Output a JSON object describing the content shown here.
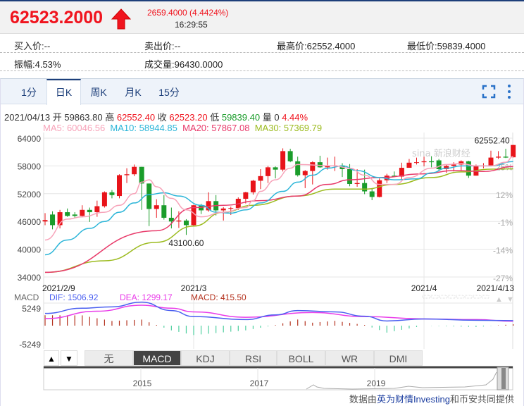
{
  "quote": {
    "price": "62523.2000",
    "change": "2659.4000 (4.4424%)",
    "time": "16:29:55",
    "direction": "up",
    "color_up": "#f0141e",
    "color_down": "#1a9c2a"
  },
  "info": {
    "bid": "买入价:--",
    "ask": "卖出价:--",
    "high": "最高价:62552.4000",
    "low": "最低价:59839.4000",
    "amplitude": "振幅:4.53%",
    "volume": "成交量:96430.0000"
  },
  "tabs": [
    {
      "label": "1分"
    },
    {
      "label": "日K",
      "active": true
    },
    {
      "label": "周K"
    },
    {
      "label": "月K"
    },
    {
      "label": "15分"
    }
  ],
  "toolbar_icons": [
    "fullscreen-icon",
    "more-vertical-icon"
  ],
  "ohlc_line": {
    "date": "2021/04/13",
    "open_label": "开",
    "open": "59863.80",
    "high_label": "高",
    "high": "62552.40",
    "close_label": "收",
    "close": "62523.20",
    "low_label": "低",
    "low": "59839.40",
    "vol_label": "量",
    "vol": "0",
    "pct": "4.44%"
  },
  "ma_line": {
    "ma5": "MA5: 60046.56",
    "ma10": "MA10: 58944.85",
    "ma20": "MA20: 57867.08",
    "ma30": "MA30: 57369.79"
  },
  "colors": {
    "ma5": "#f7a3b9",
    "ma10": "#2bb5d8",
    "ma20": "#e83a6a",
    "ma30": "#9cbb1f",
    "dif": "#4a5ff0",
    "dea": "#e93ce9",
    "macd": "#b4321e",
    "hist_up": "#b4321e",
    "hist_down": "#4fcf9f"
  },
  "chart_data": {
    "type": "candlestick",
    "y_ticks": [
      64000,
      58000,
      52000,
      46000,
      40000,
      34000
    ],
    "ylim": [
      34000,
      64000
    ],
    "pct_ticks": [
      "25%",
      "12%",
      "-1%",
      "-14%",
      "-27%"
    ],
    "x_labels": [
      {
        "date": "2021-02-09",
        "label": "2021/2/9"
      },
      {
        "date": "2021-03-01",
        "label": "2021/3"
      },
      {
        "date": "2021-04-01",
        "label": "2021/4"
      },
      {
        "date": "2021-04-13",
        "label": "2021/4/13"
      }
    ],
    "max_label": "62552.40",
    "min_label": "43100.60",
    "watermark": "sina 新浪财经",
    "candles": [
      [
        "2021-02-09",
        46000,
        47800,
        45200,
        46300
      ],
      [
        "2021-02-10",
        47500,
        48200,
        44300,
        45200
      ],
      [
        "2021-02-11",
        45200,
        48500,
        44500,
        48000
      ],
      [
        "2021-02-12",
        48000,
        48800,
        47000,
        47200
      ],
      [
        "2021-02-13",
        47500,
        48000,
        46800,
        47200
      ],
      [
        "2021-02-14",
        47200,
        49500,
        46900,
        48500
      ],
      [
        "2021-02-15",
        48500,
        49000,
        45900,
        48000
      ],
      [
        "2021-02-16",
        48000,
        50500,
        47000,
        49300
      ],
      [
        "2021-02-17",
        49300,
        52500,
        49000,
        52300
      ],
      [
        "2021-02-18",
        52300,
        52800,
        51000,
        51700
      ],
      [
        "2021-02-19",
        51500,
        56200,
        51000,
        56000
      ],
      [
        "2021-02-20",
        56000,
        57500,
        54300,
        56200
      ],
      [
        "2021-02-21",
        56200,
        58300,
        55800,
        57800
      ],
      [
        "2021-02-22",
        57800,
        57800,
        48500,
        54200
      ],
      [
        "2021-02-23",
        54200,
        54200,
        45000,
        48700
      ],
      [
        "2021-02-24",
        48700,
        50800,
        46800,
        49500
      ],
      [
        "2021-02-25",
        49500,
        51700,
        46400,
        46800
      ],
      [
        "2021-02-26",
        46800,
        49000,
        44500,
        46000
      ],
      [
        "2021-02-27",
        46000,
        48200,
        44600,
        46200
      ],
      [
        "2021-02-28",
        46200,
        46500,
        43100.6,
        45200
      ],
      [
        "2021-03-01",
        45200,
        49600,
        44900,
        49500
      ],
      [
        "2021-03-02",
        49500,
        49800,
        47600,
        48400
      ],
      [
        "2021-03-03",
        48400,
        52300,
        48100,
        50400
      ],
      [
        "2021-03-04",
        50400,
        51700,
        47300,
        48400
      ],
      [
        "2021-03-05",
        48400,
        49100,
        46200,
        48800
      ],
      [
        "2021-03-06",
        48800,
        49200,
        47400,
        48900
      ],
      [
        "2021-03-07",
        48900,
        51200,
        48500,
        50900
      ],
      [
        "2021-03-08",
        50900,
        52400,
        49900,
        52300
      ],
      [
        "2021-03-09",
        52300,
        55000,
        51800,
        54800
      ],
      [
        "2021-03-10",
        54800,
        57300,
        53000,
        55800
      ],
      [
        "2021-03-11",
        55800,
        58000,
        54300,
        57700
      ],
      [
        "2021-03-12",
        57700,
        57900,
        55300,
        57200
      ],
      [
        "2021-03-13",
        57200,
        61800,
        56800,
        61200
      ],
      [
        "2021-03-14",
        61200,
        61700,
        58800,
        59000
      ],
      [
        "2021-03-15",
        59000,
        60000,
        55700,
        56000
      ],
      [
        "2021-03-16",
        56000,
        57100,
        53200,
        56900
      ],
      [
        "2021-03-17",
        56900,
        59000,
        54000,
        58800
      ],
      [
        "2021-03-18",
        58800,
        60200,
        57600,
        57700
      ],
      [
        "2021-03-19",
        57700,
        59800,
        57200,
        58000
      ],
      [
        "2021-03-20",
        58000,
        60000,
        56900,
        58100
      ],
      [
        "2021-03-21",
        58100,
        58600,
        55600,
        57300
      ],
      [
        "2021-03-22",
        57300,
        58400,
        53600,
        54100
      ],
      [
        "2021-03-23",
        54100,
        57300,
        53500,
        54300
      ],
      [
        "2021-03-24",
        54300,
        57200,
        51900,
        52500
      ],
      [
        "2021-03-25",
        52500,
        53200,
        50600,
        51300
      ],
      [
        "2021-03-26",
        51300,
        55300,
        51200,
        54900
      ],
      [
        "2021-03-27",
        54900,
        56300,
        54300,
        55900
      ],
      [
        "2021-03-28",
        55900,
        56800,
        55600,
        55700
      ],
      [
        "2021-03-29",
        55700,
        58700,
        55100,
        57600
      ],
      [
        "2021-03-30",
        57600,
        59500,
        57600,
        58700
      ],
      [
        "2021-03-31",
        58700,
        59800,
        58300,
        58800
      ],
      [
        "2021-04-01",
        58800,
        60000,
        57900,
        59000
      ],
      [
        "2021-04-02",
        59000,
        60100,
        57700,
        58800
      ],
      [
        "2021-04-03",
        59200,
        59500,
        57000,
        57300
      ],
      [
        "2021-04-04",
        57300,
        58300,
        56500,
        58000
      ],
      [
        "2021-04-05",
        58000,
        58800,
        56800,
        58300
      ],
      [
        "2021-04-06",
        58300,
        59200,
        56900,
        59000
      ],
      [
        "2021-04-07",
        59000,
        59100,
        55400,
        55900
      ],
      [
        "2021-04-08",
        55900,
        58300,
        55900,
        58000
      ],
      [
        "2021-04-09",
        58000,
        58600,
        57500,
        58100
      ],
      [
        "2021-04-10",
        58100,
        61300,
        58000,
        59800
      ],
      [
        "2021-04-11",
        59800,
        61200,
        59500,
        60000
      ],
      [
        "2021-04-12",
        60000,
        61700,
        59700,
        59800
      ],
      [
        "2021-04-13",
        59863.8,
        62552.4,
        59839.4,
        62523.2
      ]
    ],
    "ma5": [
      [
        "2021-02-09",
        42000
      ],
      [
        "2021-02-12",
        46500
      ],
      [
        "2021-02-14",
        47000
      ],
      [
        "2021-02-17",
        48000
      ],
      [
        "2021-02-19",
        49500
      ],
      [
        "2021-02-21",
        52000
      ],
      [
        "2021-02-22",
        54500
      ],
      [
        "2021-02-23",
        55000
      ],
      [
        "2021-02-24",
        53500
      ],
      [
        "2021-02-26",
        51000
      ],
      [
        "2021-02-28",
        48500
      ],
      [
        "2021-03-02",
        47000
      ],
      [
        "2021-03-05",
        48000
      ],
      [
        "2021-03-08",
        49000
      ],
      [
        "2021-03-09",
        50500
      ],
      [
        "2021-03-10",
        52500
      ],
      [
        "2021-03-12",
        55000
      ],
      [
        "2021-03-14",
        57500
      ],
      [
        "2021-03-15",
        58300
      ],
      [
        "2021-03-20",
        58000
      ],
      [
        "2021-03-22",
        57500
      ],
      [
        "2021-03-24",
        56000
      ],
      [
        "2021-03-26",
        54000
      ],
      [
        "2021-03-28",
        54000
      ],
      [
        "2021-03-30",
        55500
      ],
      [
        "2021-04-02",
        57500
      ],
      [
        "2021-04-04",
        58300
      ],
      [
        "2021-04-06",
        58500
      ],
      [
        "2021-04-08",
        58000
      ],
      [
        "2021-04-10",
        58000
      ],
      [
        "2021-04-12",
        58800
      ],
      [
        "2021-04-13",
        60046.56
      ]
    ],
    "ma10": [
      [
        "2021-02-09",
        38800
      ],
      [
        "2021-02-12",
        42000
      ],
      [
        "2021-02-15",
        44500
      ],
      [
        "2021-02-17",
        46000
      ],
      [
        "2021-02-19",
        48000
      ],
      [
        "2021-02-21",
        50000
      ],
      [
        "2021-02-23",
        51800
      ],
      [
        "2021-02-25",
        52200
      ],
      [
        "2021-02-27",
        51500
      ],
      [
        "2021-03-02",
        49500
      ],
      [
        "2021-03-04",
        48000
      ],
      [
        "2021-03-06",
        47800
      ],
      [
        "2021-03-08",
        48500
      ],
      [
        "2021-03-10",
        50000
      ],
      [
        "2021-03-13",
        52500
      ],
      [
        "2021-03-15",
        54500
      ],
      [
        "2021-03-17",
        56000
      ],
      [
        "2021-03-19",
        57500
      ],
      [
        "2021-03-21",
        58000
      ],
      [
        "2021-03-23",
        57000
      ],
      [
        "2021-03-26",
        55500
      ],
      [
        "2021-03-28",
        55000
      ],
      [
        "2021-03-31",
        55200
      ],
      [
        "2021-04-02",
        56500
      ],
      [
        "2021-04-04",
        57500
      ],
      [
        "2021-04-06",
        58000
      ],
      [
        "2021-04-10",
        58000
      ],
      [
        "2021-04-13",
        58944.85
      ]
    ],
    "ma20": [
      [
        "2021-02-09",
        35000
      ],
      [
        "2021-02-24",
        44000
      ],
      [
        "2021-03-01",
        49000
      ],
      [
        "2021-03-05",
        49500
      ],
      [
        "2021-03-10",
        50500
      ],
      [
        "2021-03-15",
        51500
      ],
      [
        "2021-03-19",
        54000
      ],
      [
        "2021-03-22",
        55000
      ],
      [
        "2021-03-26",
        55500
      ],
      [
        "2021-04-01",
        56300
      ],
      [
        "2021-04-05",
        57000
      ],
      [
        "2021-04-09",
        56800
      ],
      [
        "2021-04-13",
        57867.08
      ]
    ],
    "ma30": [
      [
        "2021-02-09",
        35000
      ],
      [
        "2021-02-17",
        37500
      ],
      [
        "2021-02-24",
        41500
      ],
      [
        "2021-03-01",
        45000
      ],
      [
        "2021-03-05",
        48000
      ],
      [
        "2021-03-09",
        49500
      ],
      [
        "2021-03-15",
        51500
      ],
      [
        "2021-03-20",
        53000
      ],
      [
        "2021-03-24",
        53000
      ],
      [
        "2021-03-28",
        54000
      ],
      [
        "2021-04-02",
        55500
      ],
      [
        "2021-04-06",
        56700
      ],
      [
        "2021-04-10",
        57300
      ],
      [
        "2021-04-13",
        57369.79
      ]
    ]
  },
  "macd": {
    "title": "MACD",
    "dif_label": "DIF: 1506.92",
    "dea_label": "DEA: 1299.17",
    "macd_label": "MACD: 415.50",
    "y_ticks": [
      "5249",
      "-5249"
    ],
    "ylim": [
      -5249,
      5249
    ],
    "dif": [
      [
        "2021-02-09",
        3650
      ],
      [
        "2021-02-14",
        5200
      ],
      [
        "2021-02-18",
        5600
      ],
      [
        "2021-02-22",
        7000
      ],
      [
        "2021-02-26",
        4500
      ],
      [
        "2021-03-01",
        2700
      ],
      [
        "2021-03-08",
        1800
      ],
      [
        "2021-03-12",
        3200
      ],
      [
        "2021-03-15",
        4500
      ],
      [
        "2021-03-20",
        4100
      ],
      [
        "2021-03-24",
        2800
      ],
      [
        "2021-03-27",
        1400
      ],
      [
        "2021-04-01",
        2000
      ],
      [
        "2021-04-08",
        1600
      ],
      [
        "2021-04-13",
        1506.92
      ]
    ],
    "dea": [
      [
        "2021-02-09",
        2100
      ],
      [
        "2021-02-16",
        4300
      ],
      [
        "2021-02-22",
        6100
      ],
      [
        "2021-02-26",
        5200
      ],
      [
        "2021-03-01",
        4100
      ],
      [
        "2021-03-08",
        2500
      ],
      [
        "2021-03-17",
        3900
      ],
      [
        "2021-03-24",
        2700
      ],
      [
        "2021-04-01",
        2000
      ],
      [
        "2021-04-08",
        1800
      ],
      [
        "2021-04-13",
        1299.17
      ]
    ]
  },
  "indicator_tabs": [
    {
      "label": "▲"
    },
    {
      "label": "▼"
    },
    {
      "label": "无"
    },
    {
      "label": "MACD",
      "active": true
    },
    {
      "label": "KDJ"
    },
    {
      "label": "RSI"
    },
    {
      "label": "BOLL"
    },
    {
      "label": "WR"
    },
    {
      "label": "DMI"
    }
  ],
  "navigator": {
    "years": [
      "2015",
      "2017",
      "2019"
    ]
  },
  "footer": {
    "prefix": "数据由",
    "link": "英为财情Investing",
    "suffix": "和币安共同提供"
  }
}
